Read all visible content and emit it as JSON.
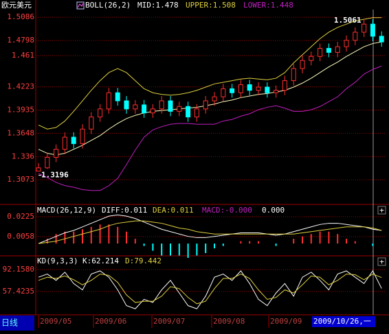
{
  "chart_data": [
    {
      "type": "candlestick",
      "title": "欧元美元",
      "indicator": "BOLL(26,2)",
      "mid_label": "MID:1.478",
      "upper_label": "UPPER:1.508",
      "lower_label": "LOWER:1.448",
      "up_color": "#ff3030",
      "down_color": "#00ffff",
      "open": [
        1.318,
        1.322,
        1.335,
        1.345,
        1.36,
        1.352,
        1.37,
        1.385,
        1.395,
        1.415,
        1.405,
        1.395,
        1.4,
        1.39,
        1.395,
        1.405,
        1.392,
        1.398,
        1.385,
        1.395,
        1.405,
        1.41,
        1.42,
        1.415,
        1.425,
        1.418,
        1.422,
        1.415,
        1.418,
        1.43,
        1.445,
        1.455,
        1.46,
        1.47,
        1.465,
        1.472,
        1.48,
        1.49,
        1.5,
        1.485
      ],
      "close": [
        1.322,
        1.335,
        1.345,
        1.36,
        1.352,
        1.37,
        1.385,
        1.395,
        1.415,
        1.405,
        1.395,
        1.4,
        1.39,
        1.395,
        1.405,
        1.392,
        1.398,
        1.385,
        1.395,
        1.405,
        1.41,
        1.42,
        1.415,
        1.425,
        1.418,
        1.422,
        1.415,
        1.418,
        1.43,
        1.445,
        1.455,
        1.46,
        1.47,
        1.465,
        1.472,
        1.48,
        1.49,
        1.5,
        1.485,
        1.478
      ],
      "high": [
        1.328,
        1.341,
        1.351,
        1.366,
        1.366,
        1.376,
        1.391,
        1.401,
        1.421,
        1.421,
        1.411,
        1.406,
        1.406,
        1.401,
        1.411,
        1.411,
        1.404,
        1.404,
        1.401,
        1.411,
        1.416,
        1.426,
        1.426,
        1.431,
        1.431,
        1.428,
        1.428,
        1.424,
        1.436,
        1.451,
        1.461,
        1.466,
        1.476,
        1.476,
        1.478,
        1.486,
        1.496,
        1.5061,
        1.506,
        1.491
      ],
      "low": [
        1.3196,
        1.3205,
        1.329,
        1.339,
        1.346,
        1.346,
        1.364,
        1.379,
        1.389,
        1.399,
        1.389,
        1.389,
        1.384,
        1.384,
        1.389,
        1.386,
        1.386,
        1.379,
        1.379,
        1.389,
        1.399,
        1.404,
        1.409,
        1.409,
        1.412,
        1.412,
        1.409,
        1.409,
        1.412,
        1.424,
        1.439,
        1.449,
        1.454,
        1.459,
        1.459,
        1.466,
        1.474,
        1.484,
        1.479,
        1.472
      ],
      "series": [
        {
          "color": "#ffffc0",
          "values": [
            1.345,
            1.34,
            1.338,
            1.34,
            1.345,
            1.35,
            1.356,
            1.362,
            1.37,
            1.377,
            1.383,
            1.387,
            1.39,
            1.392,
            1.393,
            1.394,
            1.395,
            1.396,
            1.397,
            1.399,
            1.401,
            1.404,
            1.406,
            1.409,
            1.411,
            1.413,
            1.414,
            1.416,
            1.418,
            1.422,
            1.427,
            1.433,
            1.44,
            1.447,
            1.453,
            1.46,
            1.466,
            1.472,
            1.476,
            1.478
          ]
        },
        {
          "color": "#e0d040",
          "values": [
            1.375,
            1.37,
            1.372,
            1.38,
            1.392,
            1.405,
            1.418,
            1.43,
            1.44,
            1.445,
            1.44,
            1.43,
            1.42,
            1.415,
            1.413,
            1.412,
            1.413,
            1.415,
            1.418,
            1.422,
            1.426,
            1.428,
            1.43,
            1.432,
            1.433,
            1.432,
            1.431,
            1.433,
            1.44,
            1.452,
            1.462,
            1.472,
            1.482,
            1.49,
            1.496,
            1.5,
            1.504,
            1.506,
            1.508,
            1.508
          ]
        },
        {
          "color": "#c020c0",
          "values": [
            1.315,
            1.31,
            1.304,
            1.3,
            1.298,
            1.295,
            1.294,
            1.294,
            1.3,
            1.309,
            1.326,
            1.344,
            1.36,
            1.369,
            1.373,
            1.376,
            1.377,
            1.377,
            1.376,
            1.376,
            1.376,
            1.38,
            1.382,
            1.386,
            1.389,
            1.394,
            1.397,
            1.399,
            1.396,
            1.392,
            1.392,
            1.394,
            1.398,
            1.404,
            1.41,
            1.42,
            1.428,
            1.438,
            1.444,
            1.448
          ]
        }
      ],
      "ylim": [
        1.2776,
        1.518
      ],
      "yticks": [
        1.5086,
        1.4798,
        1.461,
        1.4223,
        1.3935,
        1.3648,
        1.336,
        1.3073
      ],
      "grid": true
    },
    {
      "type": "macd",
      "title": "MACD(26,12,9)",
      "diff_label": "DIFF:0.011",
      "dea_label": "DEA:0.011",
      "macd_label": "MACD:-0.000",
      "extra_label": "0.000",
      "up_color": "#ff3030",
      "down_color": "#00ffff",
      "series": [
        {
          "color": "#ffffff",
          "values": [
            0.0,
            0.003,
            0.006,
            0.009,
            0.011,
            0.014,
            0.017,
            0.02,
            0.023,
            0.024,
            0.023,
            0.021,
            0.018,
            0.015,
            0.012,
            0.01,
            0.008,
            0.006,
            0.005,
            0.005,
            0.006,
            0.007,
            0.008,
            0.009,
            0.009,
            0.009,
            0.008,
            0.007,
            0.008,
            0.01,
            0.012,
            0.014,
            0.016,
            0.017,
            0.017,
            0.016,
            0.015,
            0.014,
            0.012,
            0.011
          ]
        },
        {
          "color": "#e0d040",
          "values": [
            0.0,
            0.001,
            0.002,
            0.004,
            0.006,
            0.008,
            0.01,
            0.012,
            0.015,
            0.017,
            0.018,
            0.019,
            0.019,
            0.018,
            0.017,
            0.015,
            0.013,
            0.012,
            0.01,
            0.009,
            0.008,
            0.008,
            0.008,
            0.008,
            0.008,
            0.008,
            0.008,
            0.008,
            0.008,
            0.008,
            0.009,
            0.01,
            0.011,
            0.012,
            0.013,
            0.014,
            0.014,
            0.014,
            0.013,
            0.011
          ]
        }
      ],
      "macd": [
        0,
        0.004,
        0.008,
        0.01,
        0.01,
        0.012,
        0.014,
        0.016,
        0.016,
        0.014,
        0.01,
        0.004,
        -0.002,
        -0.006,
        -0.01,
        -0.01,
        -0.01,
        -0.012,
        -0.01,
        -0.008,
        -0.004,
        -0.002,
        0,
        0.002,
        0.002,
        0.002,
        0,
        -0.002,
        0,
        0.004,
        0.006,
        0.008,
        0.01,
        0.01,
        0.008,
        0.004,
        0.002,
        0,
        -0.002,
        0
      ],
      "ylim": [
        -0.0097,
        0.0317
      ],
      "yticks": [
        0.0225,
        0.0058
      ],
      "grid": true
    },
    {
      "type": "kd",
      "title": "KD(9,3,3)",
      "k_label": "K:62.214",
      "d_label": "D:79.442",
      "series": [
        {
          "color": "#ffffff",
          "values": [
            80,
            85,
            75,
            88,
            70,
            60,
            85,
            90,
            80,
            60,
            35,
            30,
            45,
            40,
            60,
            75,
            55,
            35,
            30,
            50,
            80,
            85,
            75,
            90,
            70,
            45,
            35,
            55,
            70,
            50,
            80,
            88,
            75,
            60,
            85,
            90,
            80,
            70,
            90,
            62.214
          ]
        },
        {
          "color": "#e0d040",
          "values": [
            75,
            80,
            78,
            82,
            76,
            68,
            75,
            85,
            83,
            72,
            52,
            40,
            42,
            42,
            50,
            65,
            62,
            48,
            38,
            42,
            62,
            78,
            78,
            85,
            78,
            60,
            45,
            48,
            60,
            55,
            68,
            82,
            80,
            68,
            75,
            85,
            84,
            76,
            85,
            79.442
          ]
        }
      ],
      "ylim": [
        21.6,
        110.6
      ],
      "yticks": [
        {
          "value": 92.158,
          "label": "92.1580"
        },
        57.4235
      ],
      "grid": true
    }
  ],
  "footer": {
    "tab": "日线",
    "dates": [
      "2009/05",
      "2009/06",
      "2009/07",
      "2009/08",
      "2009/09"
    ],
    "cursor_date": "2009/10/26,一"
  }
}
